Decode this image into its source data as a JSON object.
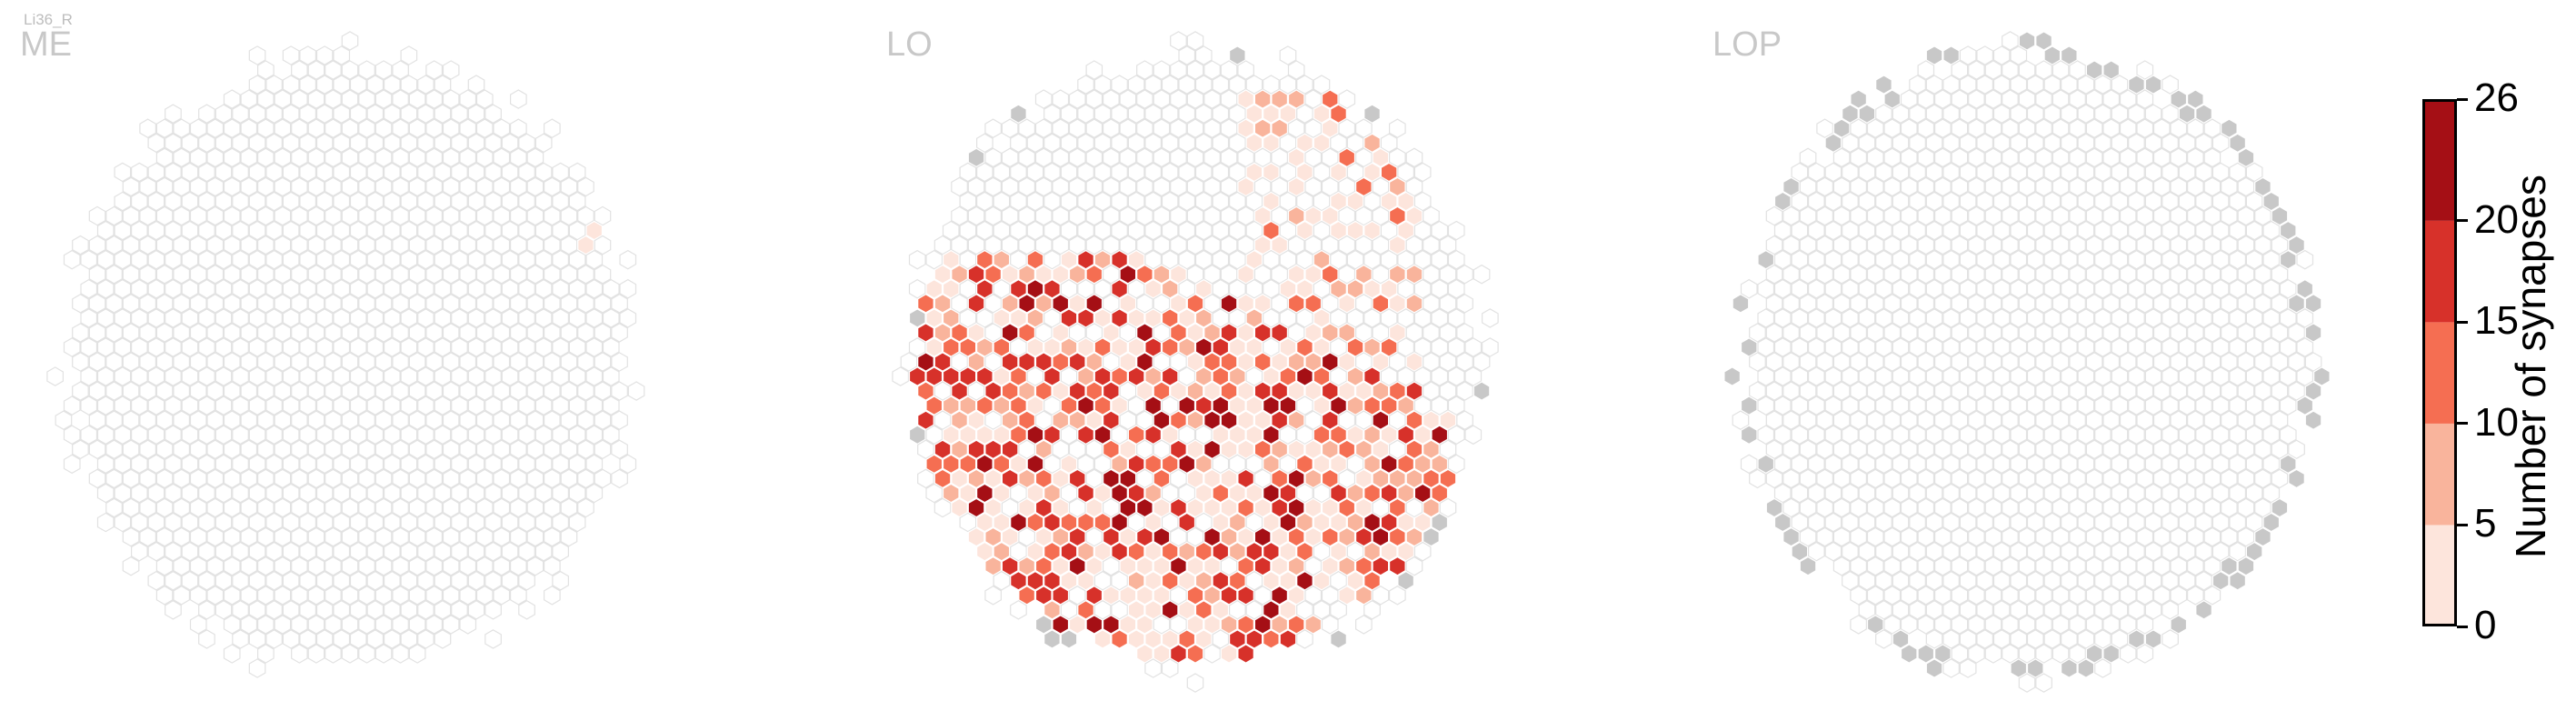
{
  "cell_type": "Li36_R",
  "panels": [
    {
      "id": "ME",
      "title": "ME"
    },
    {
      "id": "LO",
      "title": "LO"
    },
    {
      "id": "LOP",
      "title": "LOP"
    }
  ],
  "colorbar": {
    "title": "Number of synapses",
    "ticks": [
      "0",
      "5",
      "10",
      "15",
      "20",
      "26"
    ],
    "bins": [
      {
        "from": 0,
        "to": 5,
        "color": "#fde5dc"
      },
      {
        "from": 5,
        "to": 10,
        "color": "#f9b49c"
      },
      {
        "from": 10,
        "to": 15,
        "color": "#f56e52"
      },
      {
        "from": 15,
        "to": 20,
        "color": "#d7312a"
      },
      {
        "from": 20,
        "to": 26,
        "color": "#a50f15"
      }
    ]
  },
  "chart_data": {
    "type": "heatmap",
    "title": "",
    "layout": "hexagonal columns, three neuropil panels",
    "value_label": "Number of synapses",
    "range": [
      0,
      26
    ],
    "empty_color": "#ffffff",
    "outside_color": "#c8c8c8",
    "panels": [
      {
        "name": "ME",
        "nonzero_columns": 1,
        "max_value": 3,
        "outside_columns": 0
      },
      {
        "name": "LO",
        "nonzero_columns": 330,
        "max_value": 26,
        "outside_columns": 24
      },
      {
        "name": "LOP",
        "nonzero_columns": 0,
        "max_value": 0,
        "outside_columns": 70
      }
    ]
  }
}
